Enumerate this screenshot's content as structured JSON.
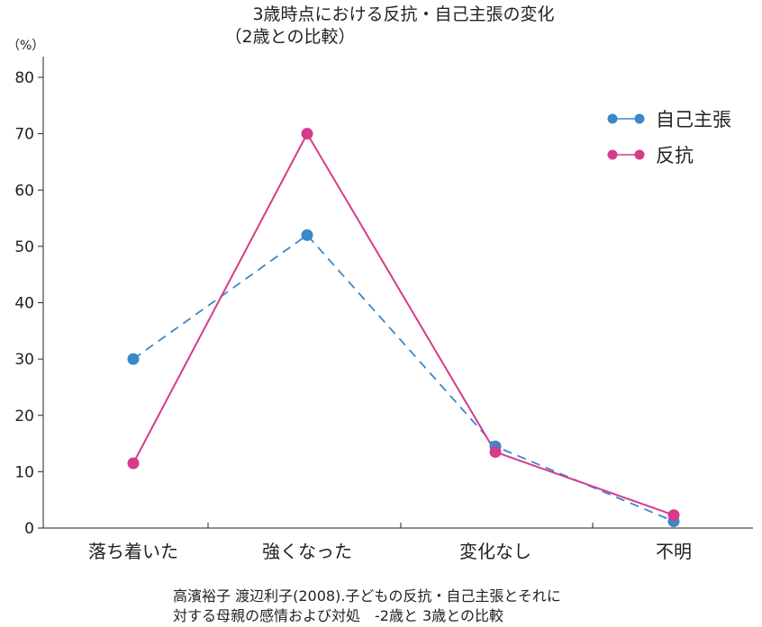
{
  "chart_data": {
    "type": "line",
    "title": [
      "3歳時点における反抗・自己主張の変化",
      "（2歳との比較）"
    ],
    "ylabel_unit": "（%）",
    "ylim": [
      0,
      80
    ],
    "yticks": [
      0,
      10,
      20,
      30,
      40,
      50,
      60,
      70,
      80
    ],
    "categories": [
      "落ち着いた",
      "強くなった",
      "変化なし",
      "不明"
    ],
    "legend_position": "top-right",
    "grid": false,
    "series": [
      {
        "name": "自己主張",
        "values": [
          30,
          52,
          14.5,
          1.2
        ],
        "color": "#3a87c9",
        "dashed": true
      },
      {
        "name": "反抗",
        "values": [
          11.5,
          70,
          13.5,
          2.3
        ],
        "color": "#d63b8a",
        "dashed": false
      }
    ],
    "source": [
      "高濱裕子 渡辺利子(2008).子どもの反抗・自己主張とそれに",
      "対する母親の感情および対処　-2歳と 3歳との比較"
    ]
  }
}
